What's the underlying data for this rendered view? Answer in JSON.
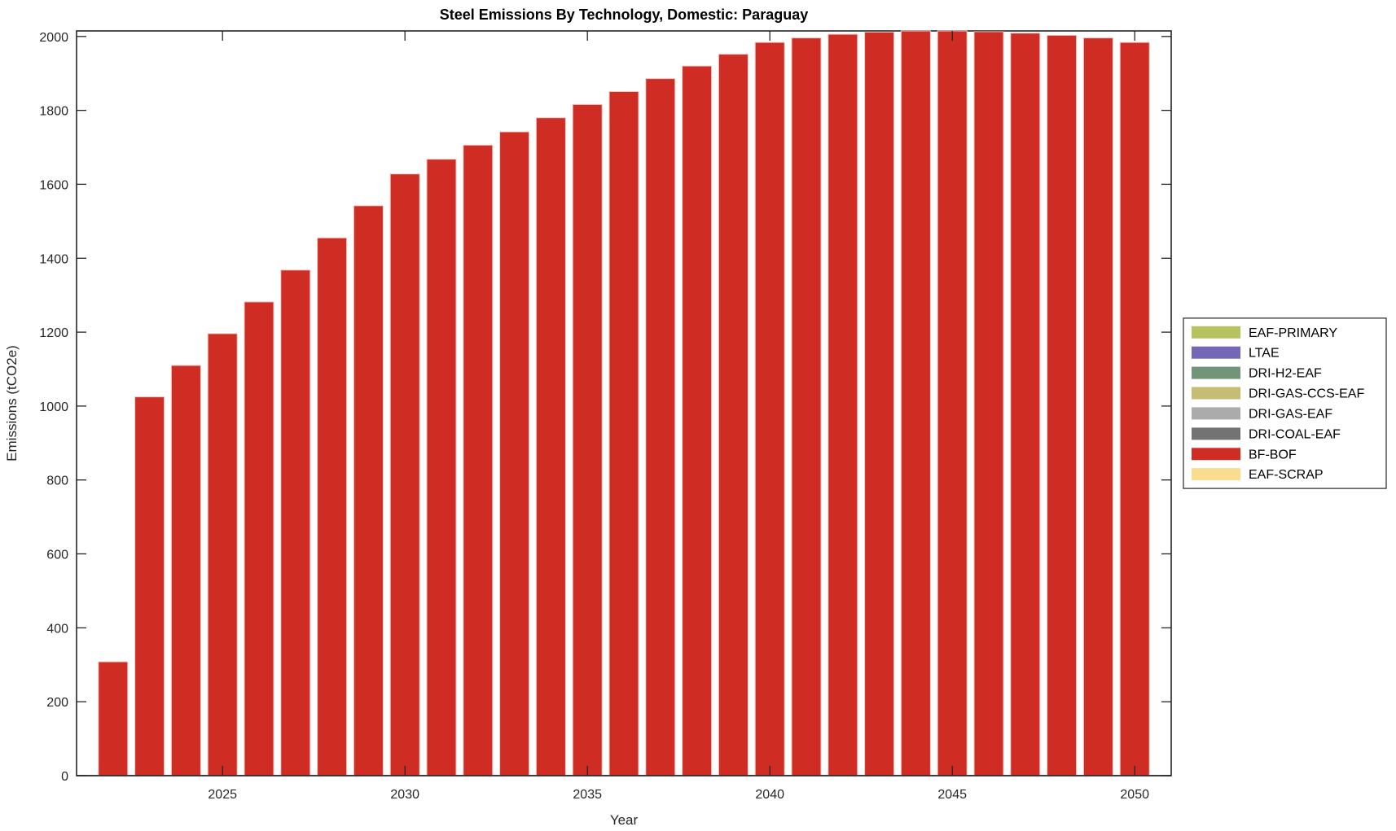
{
  "chart_data": {
    "type": "bar",
    "title": "Steel Emissions By Technology, Domestic: Paraguay",
    "xlabel": "Year",
    "ylabel": "Emissions (tCO2e)",
    "categories": [
      2022,
      2023,
      2024,
      2025,
      2026,
      2027,
      2028,
      2029,
      2030,
      2031,
      2032,
      2033,
      2034,
      2035,
      2036,
      2037,
      2038,
      2039,
      2040,
      2041,
      2042,
      2043,
      2044,
      2045,
      2046,
      2047,
      2048,
      2049,
      2050
    ],
    "series": [
      {
        "name": "BF-BOF",
        "color": "#CF2D24",
        "values": [
          308,
          1025,
          1110,
          1196,
          1282,
          1368,
          1455,
          1542,
          1628,
          1668,
          1706,
          1742,
          1780,
          1816,
          1851,
          1886,
          1920,
          1952,
          1984,
          1996,
          2006,
          2012,
          2015,
          2015,
          2013,
          2009,
          2003,
          1996,
          1984
        ]
      }
    ],
    "legend": {
      "position": "right-outside",
      "entries": [
        {
          "label": "EAF-PRIMARY",
          "color": "#B7C261"
        },
        {
          "label": "LTAE",
          "color": "#7268B6"
        },
        {
          "label": "DRI-H2-EAF",
          "color": "#729478"
        },
        {
          "label": "DRI-GAS-CCS-EAF",
          "color": "#C5BC76"
        },
        {
          "label": "DRI-GAS-EAF",
          "color": "#ABABAB"
        },
        {
          "label": "DRI-COAL-EAF",
          "color": "#737373"
        },
        {
          "label": "BF-BOF",
          "color": "#CF2D24"
        },
        {
          "label": "EAF-SCRAP",
          "color": "#FADC8E"
        }
      ]
    },
    "axes": {
      "xlim": [
        2021,
        2051
      ],
      "ylim": [
        0,
        2015
      ],
      "xticks": [
        2025,
        2030,
        2035,
        2040,
        2045,
        2050
      ],
      "yticks": [
        0,
        200,
        400,
        600,
        800,
        1000,
        1200,
        1400,
        1600,
        1800,
        2000
      ],
      "grid": false,
      "tick_direction": "in",
      "axis_color": "#262626"
    },
    "background": "#FFFFFF"
  }
}
